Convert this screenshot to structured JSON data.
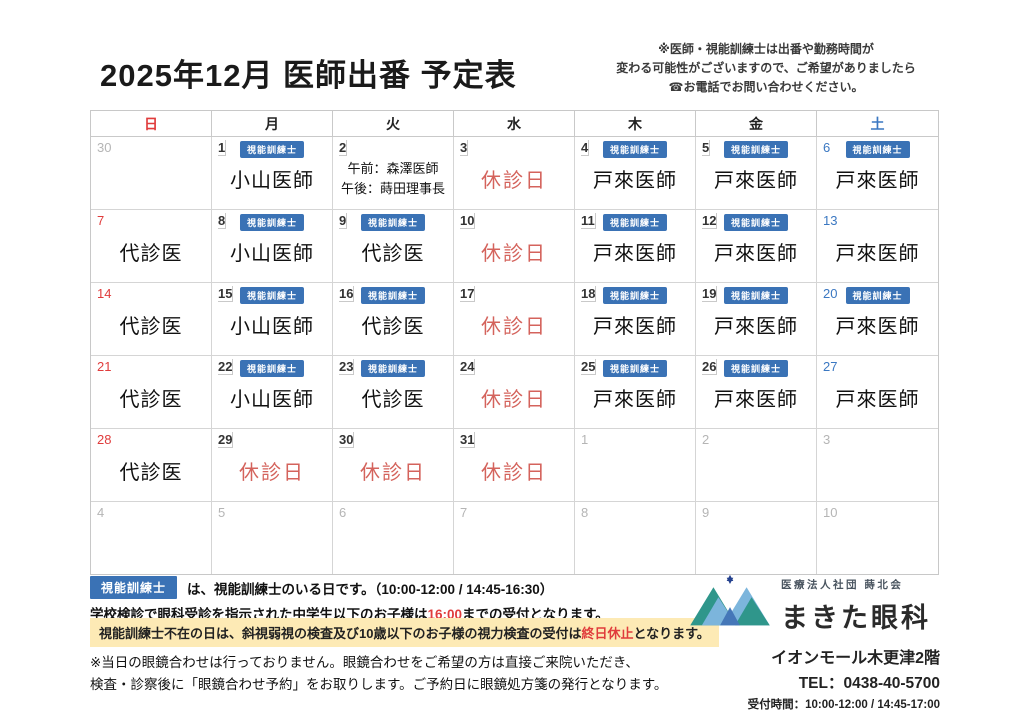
{
  "page": {
    "title": "2025年12月 医師出番 予定表",
    "note_lines": [
      "※医師・視能訓練士は出番や勤務時間が",
      "変わる可能性がございますので、ご希望がありましたら",
      "☎お電話でお問い合わせください。"
    ]
  },
  "calendar": {
    "weekdays": [
      {
        "label": "日",
        "type": "sun"
      },
      {
        "label": "月",
        "type": "wd"
      },
      {
        "label": "火",
        "type": "wd"
      },
      {
        "label": "水",
        "type": "wd"
      },
      {
        "label": "木",
        "type": "wd"
      },
      {
        "label": "金",
        "type": "wd"
      },
      {
        "label": "土",
        "type": "sat"
      }
    ],
    "badge_label": "視能訓練士",
    "cells": [
      {
        "day": "30",
        "dtype": "out",
        "badge": false,
        "body": "",
        "body_type": "none"
      },
      {
        "day": "1",
        "dtype": "wd",
        "badge": true,
        "body": "小山医師",
        "body_type": "doctor"
      },
      {
        "day": "2",
        "dtype": "wd",
        "badge": false,
        "body": "",
        "body_type": "split",
        "lines": [
          "午前：森澤医師",
          "午後：蒔田理事長"
        ]
      },
      {
        "day": "3",
        "dtype": "wd",
        "badge": false,
        "body": "休診日",
        "body_type": "closed"
      },
      {
        "day": "4",
        "dtype": "wd",
        "badge": true,
        "body": "戸來医師",
        "body_type": "doctor"
      },
      {
        "day": "5",
        "dtype": "wd",
        "badge": true,
        "body": "戸來医師",
        "body_type": "doctor"
      },
      {
        "day": "6",
        "dtype": "sat",
        "badge": true,
        "body": "戸來医師",
        "body_type": "doctor"
      },
      {
        "day": "7",
        "dtype": "sun",
        "badge": false,
        "body": "代診医",
        "body_type": "doctor"
      },
      {
        "day": "8",
        "dtype": "wd",
        "badge": true,
        "body": "小山医師",
        "body_type": "doctor"
      },
      {
        "day": "9",
        "dtype": "wd",
        "badge": true,
        "body": "代診医",
        "body_type": "doctor"
      },
      {
        "day": "10",
        "dtype": "wd",
        "badge": false,
        "body": "休診日",
        "body_type": "closed"
      },
      {
        "day": "11",
        "dtype": "wd",
        "badge": true,
        "body": "戸來医師",
        "body_type": "doctor"
      },
      {
        "day": "12",
        "dtype": "wd",
        "badge": true,
        "body": "戸來医師",
        "body_type": "doctor"
      },
      {
        "day": "13",
        "dtype": "sat",
        "badge": false,
        "body": "戸來医師",
        "body_type": "doctor"
      },
      {
        "day": "14",
        "dtype": "sun",
        "badge": false,
        "body": "代診医",
        "body_type": "doctor"
      },
      {
        "day": "15",
        "dtype": "wd",
        "badge": true,
        "body": "小山医師",
        "body_type": "doctor"
      },
      {
        "day": "16",
        "dtype": "wd",
        "badge": true,
        "body": "代診医",
        "body_type": "doctor"
      },
      {
        "day": "17",
        "dtype": "wd",
        "badge": false,
        "body": "休診日",
        "body_type": "closed"
      },
      {
        "day": "18",
        "dtype": "wd",
        "badge": true,
        "body": "戸來医師",
        "body_type": "doctor"
      },
      {
        "day": "19",
        "dtype": "wd",
        "badge": true,
        "body": "戸來医師",
        "body_type": "doctor"
      },
      {
        "day": "20",
        "dtype": "sat",
        "badge": true,
        "body": "戸來医師",
        "body_type": "doctor"
      },
      {
        "day": "21",
        "dtype": "sun",
        "badge": false,
        "body": "代診医",
        "body_type": "doctor"
      },
      {
        "day": "22",
        "dtype": "wd",
        "badge": true,
        "body": "小山医師",
        "body_type": "doctor"
      },
      {
        "day": "23",
        "dtype": "wd",
        "badge": true,
        "body": "代診医",
        "body_type": "doctor"
      },
      {
        "day": "24",
        "dtype": "wd",
        "badge": false,
        "body": "休診日",
        "body_type": "closed"
      },
      {
        "day": "25",
        "dtype": "wd",
        "badge": true,
        "body": "戸來医師",
        "body_type": "doctor"
      },
      {
        "day": "26",
        "dtype": "wd",
        "badge": true,
        "body": "戸來医師",
        "body_type": "doctor"
      },
      {
        "day": "27",
        "dtype": "sat",
        "badge": false,
        "body": "戸來医師",
        "body_type": "doctor"
      },
      {
        "day": "28",
        "dtype": "sun",
        "badge": false,
        "body": "代診医",
        "body_type": "doctor"
      },
      {
        "day": "29",
        "dtype": "wd",
        "badge": false,
        "body": "休診日",
        "body_type": "closed"
      },
      {
        "day": "30",
        "dtype": "wd",
        "badge": false,
        "body": "休診日",
        "body_type": "closed"
      },
      {
        "day": "31",
        "dtype": "wd",
        "badge": false,
        "body": "休診日",
        "body_type": "closed"
      },
      {
        "day": "1",
        "dtype": "out",
        "badge": false,
        "body": "",
        "body_type": "none"
      },
      {
        "day": "2",
        "dtype": "out",
        "badge": false,
        "body": "",
        "body_type": "none"
      },
      {
        "day": "3",
        "dtype": "out",
        "badge": false,
        "body": "",
        "body_type": "none"
      },
      {
        "day": "4",
        "dtype": "out",
        "badge": false,
        "body": "",
        "body_type": "none"
      },
      {
        "day": "5",
        "dtype": "out",
        "badge": false,
        "body": "",
        "body_type": "none"
      },
      {
        "day": "6",
        "dtype": "out",
        "badge": false,
        "body": "",
        "body_type": "none"
      },
      {
        "day": "7",
        "dtype": "out",
        "badge": false,
        "body": "",
        "body_type": "none"
      },
      {
        "day": "8",
        "dtype": "out",
        "badge": false,
        "body": "",
        "body_type": "none"
      },
      {
        "day": "9",
        "dtype": "out",
        "badge": false,
        "body": "",
        "body_type": "none"
      },
      {
        "day": "10",
        "dtype": "out",
        "badge": false,
        "body": "",
        "body_type": "none"
      }
    ]
  },
  "legend": {
    "badge_label": "視能訓練士",
    "line1": "は、視能訓練士のいる日です。（10:00-12:00 / 14:45-16:30）",
    "line2_pre": "学校検診で眼科受診を指示された中学生以下のお子様は",
    "line2_red": "16:00",
    "line2_post": "までの受付となります。"
  },
  "highlight": {
    "pre": "視能訓練士不在の日は、斜視弱視の検査及び10歳以下のお子様の視力検査の受付は",
    "red": "終日休止",
    "post": "となります。"
  },
  "glasses_note": {
    "line1": "※当日の眼鏡合わせは行っておりません。眼鏡合わせをご希望の方は直接ご来院いただき、",
    "line2": "検査・診察後に「眼鏡合わせ予約」をお取りします。ご予約日に眼鏡処方箋の発行となります。"
  },
  "clinic": {
    "org": "医療法人社団 蒔北会",
    "name": "まきた眼科",
    "address": "イオンモール木更津2階",
    "tel": "TEL：0438-40-5700",
    "hours": "受付時間：10:00-12:00 / 14:45-17:00"
  },
  "colors": {
    "accent_blue": "#3a72b5",
    "sunday_red": "#e03c3c",
    "closed_red": "#d4635c",
    "saturday_blue": "#3b78c2",
    "highlight_bg": "#fdeab5",
    "logo_teal": "#2f968b",
    "logo_light_blue": "#7cb5dc",
    "logo_mid_blue": "#4577b8",
    "logo_navy": "#24418e"
  }
}
